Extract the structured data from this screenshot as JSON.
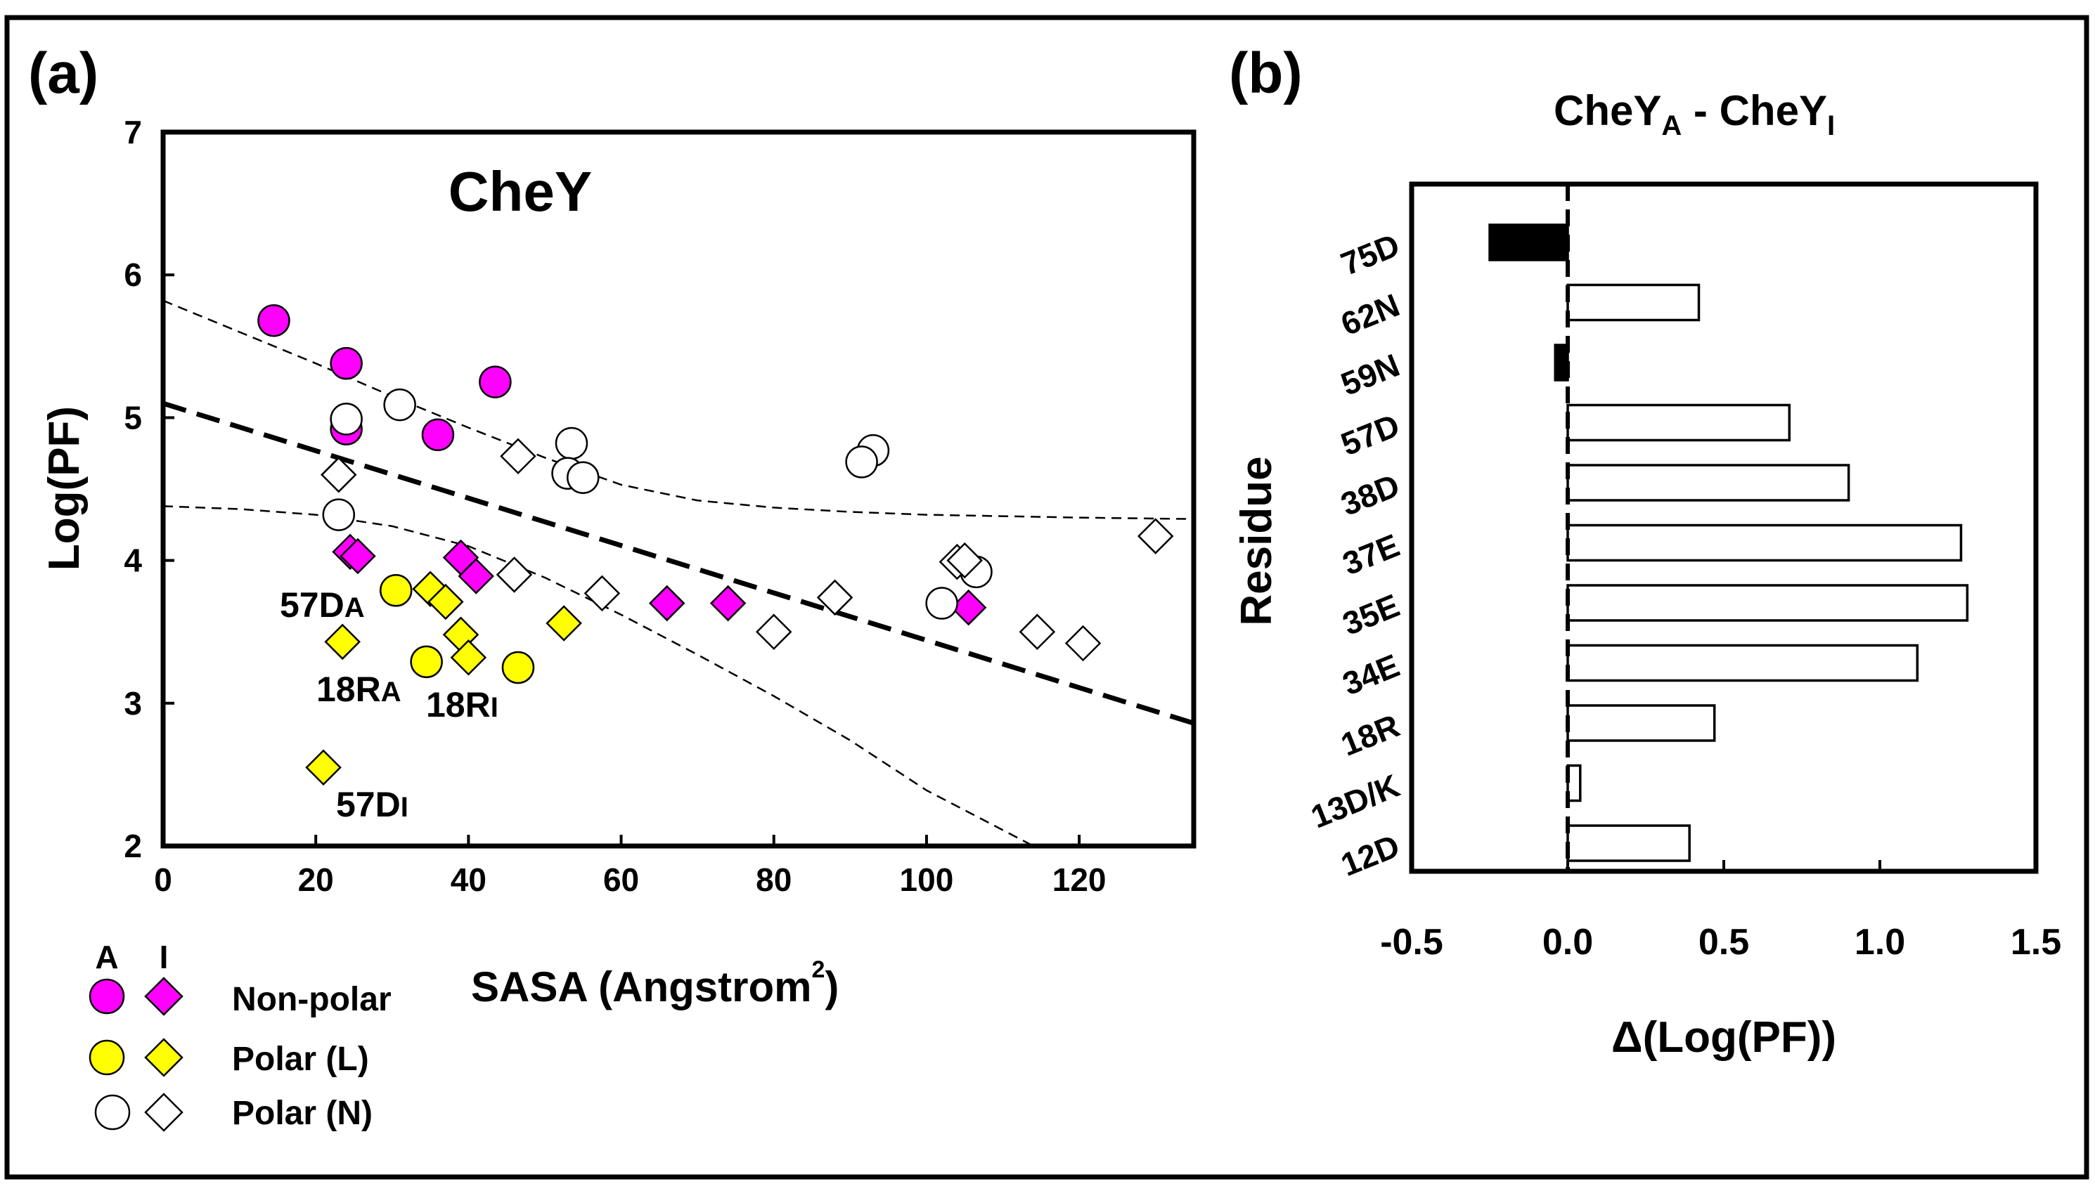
{
  "colors": {
    "nonpolar": "#ff00ff",
    "polar_l": "#ffff00",
    "polar_n": "#ffffff",
    "stroke": "#000000",
    "bar_negative": "#000000",
    "bar_positive": "#ffffff"
  },
  "chart_data": [
    {
      "panel": "(a)",
      "type": "scatter",
      "title": "CheY",
      "xlabel": "SASA (Angstrom",
      "xlabel_sup": "2",
      "xlabel_close": ")",
      "ylabel": "Log(PF)",
      "xlim": [
        0,
        135
      ],
      "ylim": [
        2,
        7
      ],
      "xticks": [
        0,
        20,
        40,
        60,
        80,
        100,
        120
      ],
      "yticks": [
        2,
        3,
        4,
        5,
        6,
        7
      ],
      "grid": false,
      "series": [
        {
          "name": "Non-polar A",
          "marker": "circle",
          "fill": "nonpolar",
          "points": [
            [
              14.5,
              5.68
            ],
            [
              24,
              5.38
            ],
            [
              43.5,
              5.25
            ],
            [
              24,
              4.92
            ],
            [
              36,
              4.88
            ]
          ]
        },
        {
          "name": "Non-polar I",
          "marker": "diamond",
          "fill": "nonpolar",
          "points": [
            [
              24.5,
              4.06
            ],
            [
              25.5,
              4.03
            ],
            [
              39,
              4.02
            ],
            [
              41,
              3.89
            ],
            [
              66,
              3.7
            ],
            [
              74,
              3.7
            ],
            [
              105.5,
              3.67
            ]
          ]
        },
        {
          "name": "Polar (L) A",
          "marker": "circle",
          "fill": "polar_l",
          "points": [
            [
              30.5,
              3.79
            ],
            [
              34.5,
              3.29
            ],
            [
              46.5,
              3.25
            ]
          ]
        },
        {
          "name": "Polar (L) I",
          "marker": "diamond",
          "fill": "polar_l",
          "points": [
            [
              35,
              3.8
            ],
            [
              37,
              3.71
            ],
            [
              23.5,
              3.43
            ],
            [
              39,
              3.48
            ],
            [
              40,
              3.32
            ],
            [
              52.5,
              3.56
            ],
            [
              21,
              2.55
            ]
          ]
        },
        {
          "name": "Polar (N) A",
          "marker": "circle",
          "fill": "polar_n",
          "points": [
            [
              24,
              4.99
            ],
            [
              31,
              5.09
            ],
            [
              53.5,
              4.82
            ],
            [
              53,
              4.61
            ],
            [
              55,
              4.58
            ],
            [
              93,
              4.77
            ],
            [
              91.5,
              4.69
            ],
            [
              23,
              4.32
            ],
            [
              106.5,
              3.92
            ],
            [
              102,
              3.7
            ]
          ]
        },
        {
          "name": "Polar (N) I",
          "marker": "diamond",
          "fill": "polar_n",
          "points": [
            [
              46.5,
              4.73
            ],
            [
              23,
              4.6
            ],
            [
              46,
              3.9
            ],
            [
              57.5,
              3.77
            ],
            [
              88,
              3.74
            ],
            [
              80,
              3.5
            ],
            [
              104,
              3.99
            ],
            [
              105,
              4.0
            ],
            [
              114.5,
              3.5
            ],
            [
              120.5,
              3.42
            ],
            [
              130,
              4.17
            ]
          ]
        }
      ],
      "point_labels": [
        {
          "text": "57DA",
          "base": "57D",
          "sub": "A"
        },
        {
          "text": "18RA",
          "base": "18R",
          "sub": "A"
        },
        {
          "text": "18RI",
          "base": "18R",
          "sub": "I"
        },
        {
          "text": "57DI",
          "base": "57D",
          "sub": "I"
        }
      ],
      "fit_lines": [
        {
          "style": "regression",
          "x": [
            0,
            135
          ],
          "y": [
            5.1,
            2.86
          ]
        },
        {
          "style": "confidence-upper",
          "x": [
            0,
            10,
            20,
            30,
            40,
            50,
            60,
            70,
            80,
            90,
            100,
            110,
            120,
            135
          ],
          "y": [
            5.82,
            5.6,
            5.38,
            5.15,
            4.93,
            4.72,
            4.53,
            4.42,
            4.37,
            4.34,
            4.32,
            4.31,
            4.3,
            4.29
          ]
        },
        {
          "style": "confidence-lower",
          "x": [
            0,
            10,
            20,
            30,
            40,
            50,
            60,
            70,
            80,
            90,
            100,
            114
          ],
          "y": [
            4.38,
            4.36,
            4.32,
            4.24,
            4.1,
            3.88,
            3.62,
            3.34,
            3.05,
            2.74,
            2.39,
            2.0
          ]
        }
      ],
      "legend": {
        "placement": "bottom-left",
        "col_a": "A",
        "col_i": "I",
        "entries": [
          {
            "label": "Non-polar",
            "fill": "nonpolar"
          },
          {
            "label": "Polar (L)",
            "fill": "polar_l"
          },
          {
            "label": "Polar (N)",
            "fill": "polar_n"
          }
        ]
      }
    },
    {
      "panel": "(b)",
      "type": "bar",
      "orientation": "horizontal",
      "title_base": "CheY",
      "title_sub_a": "A",
      "title_sep": " - ",
      "title_sub_i": "I",
      "xlabel": "Δ(Log(PF))",
      "ylabel": "Residue",
      "xlim": [
        -0.5,
        1.5
      ],
      "xticks": [
        -0.5,
        0.0,
        0.5,
        1.0,
        1.5
      ],
      "xtick_labels": [
        "-0.5",
        "0.0",
        "0.5",
        "1.0",
        "1.5"
      ],
      "categories": [
        "75D",
        "62N",
        "59N",
        "57D",
        "38D",
        "37E",
        "35E",
        "34E",
        "18R",
        "13D/K",
        "12D"
      ],
      "values": [
        -0.25,
        0.42,
        -0.04,
        0.71,
        0.9,
        1.26,
        1.28,
        1.12,
        0.47,
        0.04,
        0.39
      ],
      "zero_line": "dashed"
    }
  ]
}
